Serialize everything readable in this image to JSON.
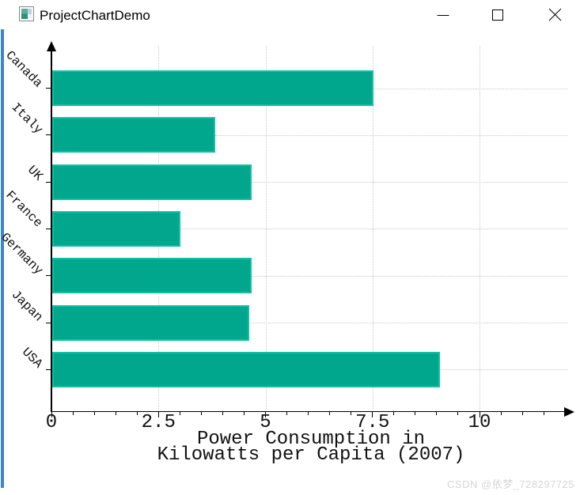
{
  "window": {
    "title": "ProjectChartDemo",
    "controls": [
      {
        "name": "minimize",
        "glyph": "─"
      },
      {
        "name": "maximize",
        "glyph": "□"
      },
      {
        "name": "close",
        "glyph": "✕"
      }
    ]
  },
  "chart_data": {
    "type": "bar",
    "orientation": "horizontal",
    "title": "",
    "categories": [
      "Canada",
      "Italy",
      "UK",
      "France",
      "Germany",
      "Japan",
      "USA"
    ],
    "values": [
      7.5,
      3.8,
      4.65,
      3.0,
      4.65,
      4.6,
      9.05
    ],
    "xlabel_lines": [
      "Power Consumption in",
      "Kilowatts per Capita (2007)"
    ],
    "ylabel": "",
    "xlim": [
      0,
      12.2
    ],
    "x_major_ticks": [
      0,
      2.5,
      5,
      7.5,
      10
    ],
    "x_tick_labels": [
      "0",
      "2.5",
      "5",
      "7.5",
      "10"
    ],
    "x_minor_tick_step": 0.5,
    "grid": "dotted",
    "legend": "none",
    "colors": {
      "bar_fill": "#00A78C",
      "bar_border": "#12C1A4",
      "grid_line": "#C8C8C8",
      "axis": "#000000",
      "text": "#111111"
    }
  },
  "watermark": {
    "text": "CSDN @依梦_728297725",
    "color": "#D6D6D6"
  }
}
